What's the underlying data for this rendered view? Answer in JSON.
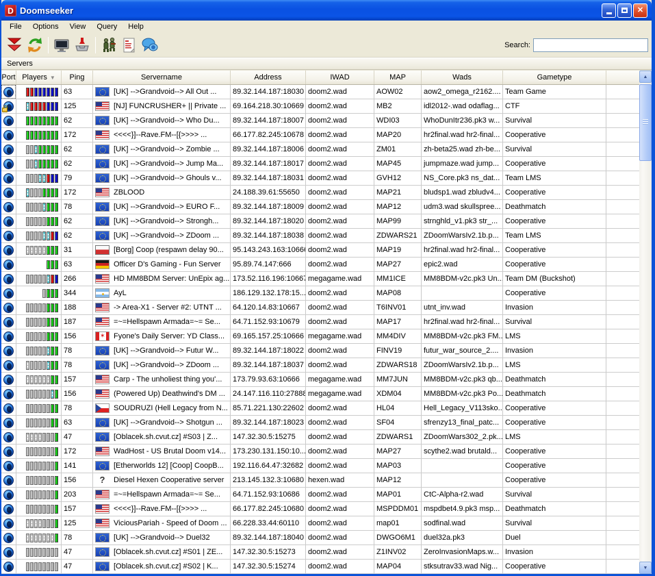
{
  "window": {
    "title": "Doomseeker"
  },
  "menu": [
    "File",
    "Options",
    "View",
    "Query",
    "Help"
  ],
  "toolbar": {
    "icons": [
      "get-new-server-list-icon",
      "refresh-servers-icon",
      "screenshot-monitor-icon",
      "wadseeker-download-icon",
      "join-game-icon",
      "server-log-icon",
      "irc-chat-icon"
    ],
    "search_label": "Search:",
    "search_value": ""
  },
  "panel": {
    "title": "Servers"
  },
  "table": {
    "columns": [
      "Port",
      "Players",
      "Ping",
      "Servername",
      "Address",
      "IWAD",
      "MAP",
      "Wads",
      "Gametype",
      ""
    ],
    "sort_column": "Players",
    "segment_legend": {
      "G": "player-green",
      "R": "team-red",
      "B": "team-blue",
      "E": "empty-slot",
      "X": "spectator-cyan",
      "P": "bot-pattern"
    },
    "rows": [
      {
        "locked": false,
        "players": "RRBBBBBB",
        "ping": "63",
        "flag": "eu",
        "name": "[UK] -->Grandvoid--> All Out ...",
        "address": "89.32.144.187:18030",
        "iwad": "doom2.wad",
        "map": "AOW02",
        "wads": "aow2_omega_r2162....",
        "gametype": "Team Game"
      },
      {
        "locked": true,
        "players": "XRRRRBBB",
        "ping": "125",
        "flag": "us",
        "name": "[NJ] FUNCRUSHER+ || Private ...",
        "address": "69.164.218.30:10669",
        "iwad": "doom2.wad",
        "map": "MB2",
        "wads": "idl2012-.wad odaflag...",
        "gametype": "CTF"
      },
      {
        "locked": false,
        "players": "GGGGGGGG",
        "ping": "62",
        "flag": "eu",
        "name": "[UK] -->Grandvoid--> Who Du...",
        "address": "89.32.144.187:18007",
        "iwad": "doom2.wad",
        "map": "WDI03",
        "wads": "WhoDunItr236.pk3 w...",
        "gametype": "Survival"
      },
      {
        "locked": false,
        "players": "GGGGGGGG",
        "ping": "172",
        "flag": "us",
        "name": "<<<<}]--Rave.FM--[{>>>> ...",
        "address": "66.177.82.245:10678",
        "iwad": "doom2.wad",
        "map": "MAP20",
        "wads": "hr2final.wad hr2-final...",
        "gametype": "Cooperative"
      },
      {
        "locked": false,
        "players": "EEXGGGGG",
        "ping": "62",
        "flag": "eu",
        "name": "[UK] -->Grandvoid--> Zombie ...",
        "address": "89.32.144.187:18006",
        "iwad": "doom2.wad",
        "map": "ZM01",
        "wads": "zh-beta25.wad zh-be...",
        "gametype": "Survival"
      },
      {
        "locked": false,
        "players": "EEXGGGGG",
        "ping": "62",
        "flag": "eu",
        "name": "[UK] -->Grandvoid--> Jump Ma...",
        "address": "89.32.144.187:18017",
        "iwad": "doom2.wad",
        "map": "MAP45",
        "wads": "jumpmaze.wad jump...",
        "gametype": "Cooperative"
      },
      {
        "locked": false,
        "players": "EEEXXRBB",
        "ping": "79",
        "flag": "eu",
        "name": "[UK] -->Grandvoid--> Ghouls v...",
        "address": "89.32.144.187:18031",
        "iwad": "doom2.wad",
        "map": "GVH12",
        "wads": "NS_Core.pk3 ns_dat...",
        "gametype": "Team LMS"
      },
      {
        "locked": false,
        "players": "XEEEGGGG",
        "ping": "172",
        "flag": "us",
        "name": "ZBLOOD",
        "address": "24.188.39.61:55650",
        "iwad": "doom2.wad",
        "map": "MAP21",
        "wads": "bludsp1.wad zbludv4...",
        "gametype": "Cooperative"
      },
      {
        "locked": false,
        "players": "EEEEXGGG",
        "ping": "78",
        "flag": "eu",
        "name": "[UK] -->Grandvoid--> EURO F...",
        "address": "89.32.144.187:18009",
        "iwad": "doom2.wad",
        "map": "MAP12",
        "wads": "udm3.wad skullspree...",
        "gametype": "Deathmatch"
      },
      {
        "locked": false,
        "players": "EEEEEGGG",
        "ping": "62",
        "flag": "eu",
        "name": "[UK] -->Grandvoid--> Strongh...",
        "address": "89.32.144.187:18020",
        "iwad": "doom2.wad",
        "map": "MAP99",
        "wads": "strnghld_v1.pk3 str_...",
        "gametype": "Cooperative"
      },
      {
        "locked": false,
        "players": "EEEEXXRB",
        "ping": "62",
        "flag": "eu",
        "name": "[UK] -->Grandvoid--> ZDoom ...",
        "address": "89.32.144.187:18038",
        "iwad": "doom2.wad",
        "map": "ZDWARS21",
        "wads": "ZDoomWarsIv2.1b.p...",
        "gametype": "Team LMS"
      },
      {
        "locked": false,
        "players": "PPPPPGGG",
        "ping": "31",
        "flag": "pl",
        "name": "[Borg] Coop (respawn delay 90...",
        "address": "95.143.243.163:10666",
        "iwad": "doom2.wad",
        "map": "MAP19",
        "wads": "hr2final.wad hr2-final...",
        "gametype": "Cooperative"
      },
      {
        "locked": false,
        "players": "GGG",
        "ping": "63",
        "flag": "de",
        "name": "Officer D's Gaming - Fun Server",
        "address": "95.89.74.147:666",
        "iwad": "doom2.wad",
        "map": "MAP27",
        "wads": "epic2.wad",
        "gametype": "Cooperative"
      },
      {
        "locked": false,
        "players": "EEEEEXRB",
        "ping": "266",
        "flag": "us",
        "name": "HD MM8BDM Server: UnEpix ag...",
        "address": "173.52.116.196:10667",
        "iwad": "megagame.wad",
        "map": "MM1ICE",
        "wads": "MM8BDM-v2c.pk3 Un...",
        "gametype": "Team DM (Buckshot)"
      },
      {
        "locked": false,
        "players": "EGGG",
        "ping": "344",
        "flag": "ar",
        "name": "AyL",
        "address": "186.129.132.178:15...",
        "iwad": "doom2.wad",
        "map": "MAP08",
        "wads": "",
        "gametype": "Cooperative"
      },
      {
        "locked": false,
        "players": "EEEEEGGG",
        "ping": "188",
        "flag": "us",
        "name": "-> Area-X1 - Server #2: UTNT ...",
        "address": "64.120.14.83:10667",
        "iwad": "doom2.wad",
        "map": "T6INV01",
        "wads": "utnt_inv.wad",
        "gametype": "Invasion"
      },
      {
        "locked": false,
        "players": "EEEEEGGG",
        "ping": "187",
        "flag": "us",
        "name": "=~=Hellspawn Armada=~= Se...",
        "address": "64.71.152.93:10679",
        "iwad": "doom2.wad",
        "map": "MAP17",
        "wads": "hr2final.wad hr2-final...",
        "gametype": "Survival"
      },
      {
        "locked": false,
        "players": "EEEEEGGG",
        "ping": "156",
        "flag": "ca",
        "name": "Fyone's Daily Server: YD Class...",
        "address": "69.165.157.25:10666",
        "iwad": "megagame.wad",
        "map": "MM4DIV",
        "wads": "MM8BDM-v2c.pk3 FM...",
        "gametype": "LMS"
      },
      {
        "locked": false,
        "players": "EEEEEXGG",
        "ping": "78",
        "flag": "eu",
        "name": "[UK] -->Grandvoid--> Futur W...",
        "address": "89.32.144.187:18022",
        "iwad": "doom2.wad",
        "map": "FINV19",
        "wads": "futur_war_source_2....",
        "gametype": "Invasion"
      },
      {
        "locked": false,
        "players": "PEEEEXGG",
        "ping": "78",
        "flag": "eu",
        "name": "[UK] -->Grandvoid--> ZDoom ...",
        "address": "89.32.144.187:18037",
        "iwad": "doom2.wad",
        "map": "ZDWARS18",
        "wads": "ZDoomWarsIv2.1b.p...",
        "gametype": "LMS"
      },
      {
        "locked": false,
        "players": "PPPPPPGG",
        "ping": "157",
        "flag": "us",
        "name": "Carp - The unholiest thing you'...",
        "address": "173.79.93.63:10666",
        "iwad": "megagame.wad",
        "map": "MM7JUN",
        "wads": "MM8BDM-v2c.pk3 qb...",
        "gametype": "Deathmatch"
      },
      {
        "locked": false,
        "players": "EEEEEEXG",
        "ping": "156",
        "flag": "us",
        "name": "(Powered Up) Deathwind's DM ...",
        "address": "24.147.116.110:27888",
        "iwad": "megagame.wad",
        "map": "XDM04",
        "wads": "MM8BDM-v2c.pk3 Po...",
        "gametype": "Deathmatch"
      },
      {
        "locked": false,
        "players": "EEEEEEGG",
        "ping": "78",
        "flag": "cz",
        "name": "SOUDRUZI (Hell Legacy from N...",
        "address": "85.71.221.130:22602",
        "iwad": "doom2.wad",
        "map": "HL04",
        "wads": "Hell_Legacy_V113sko...",
        "gametype": "Cooperative"
      },
      {
        "locked": false,
        "players": "EEEEEEGG",
        "ping": "63",
        "flag": "eu",
        "name": "[UK] -->Grandvoid--> Shotgun ...",
        "address": "89.32.144.187:18023",
        "iwad": "doom2.wad",
        "map": "SF04",
        "wads": "sfrenzy13_final_patc...",
        "gametype": "Cooperative"
      },
      {
        "locked": false,
        "players": "PPPPEEEG",
        "ping": "47",
        "flag": "eu",
        "name": "[Oblacek.sh.cvut.cz] #S03 | Z...",
        "address": "147.32.30.5:15275",
        "iwad": "doom2.wad",
        "map": "ZDWARS1",
        "wads": "ZDoomWars302_2.pk...",
        "gametype": "LMS"
      },
      {
        "locked": false,
        "players": "EEEEEEEG",
        "ping": "172",
        "flag": "us",
        "name": "WadHost - US Brutal Doom v14...",
        "address": "173.230.131.150:10...",
        "iwad": "doom2.wad",
        "map": "MAP27",
        "wads": "scythe2.wad brutald...",
        "gametype": "Cooperative"
      },
      {
        "locked": false,
        "players": "EEEEEEEG",
        "ping": "141",
        "flag": "eu",
        "name": "[Etherworlds 12] [Coop] CoopB...",
        "address": "192.116.64.47:32682",
        "iwad": "doom2.wad",
        "map": "MAP03",
        "wads": "",
        "gametype": "Cooperative"
      },
      {
        "locked": false,
        "players": "EEEEEEEG",
        "ping": "156",
        "flag": "unknown",
        "name": "Diesel Hexen Cooperative server",
        "address": "213.145.132.3:10680",
        "iwad": "hexen.wad",
        "map": "MAP12",
        "wads": "",
        "gametype": "Cooperative"
      },
      {
        "locked": false,
        "players": "EEEEEEEG",
        "ping": "203",
        "flag": "us",
        "name": "=~=Hellspawn Armada=~= Se...",
        "address": "64.71.152.93:10686",
        "iwad": "doom2.wad",
        "map": "MAP01",
        "wads": "CtC-Alpha-r2.wad",
        "gametype": "Survival"
      },
      {
        "locked": false,
        "players": "EEEEEEEG",
        "ping": "157",
        "flag": "us",
        "name": "<<<<}]--Rave.FM--[{>>>> ...",
        "address": "66.177.82.245:10680",
        "iwad": "doom2.wad",
        "map": "MSPDDM01",
        "wads": "mspdbet4.9.pk3 msp...",
        "gametype": "Deathmatch"
      },
      {
        "locked": false,
        "players": "PPPPEEEG",
        "ping": "125",
        "flag": "us",
        "name": "ViciousPariah - Speed of Doom ...",
        "address": "66.228.33.44:60110",
        "iwad": "doom2.wad",
        "map": "map01",
        "wads": "sodfinal.wad",
        "gametype": "Survival"
      },
      {
        "locked": false,
        "players": "PPPPPPPG",
        "ping": "78",
        "flag": "eu",
        "name": "[UK] -->Grandvoid--> Duel32",
        "address": "89.32.144.187:18040",
        "iwad": "doom2.wad",
        "map": "DWGO6M1",
        "wads": "duel32a.pk3",
        "gametype": "Duel"
      },
      {
        "locked": false,
        "players": "EEEEEEEE",
        "ping": "47",
        "flag": "eu",
        "name": "[Oblacek.sh.cvut.cz] #S01 | ZE...",
        "address": "147.32.30.5:15273",
        "iwad": "doom2.wad",
        "map": "Z1INV02",
        "wads": "ZeroInvasionMaps.w...",
        "gametype": "Invasion"
      },
      {
        "locked": false,
        "players": "EEEEEEEE",
        "ping": "47",
        "flag": "eu",
        "name": "[Oblacek.sh.cvut.cz] #S02 | K...",
        "address": "147.32.30.5:15274",
        "iwad": "doom2.wad",
        "map": "MAP04",
        "wads": "stksutrav33.wad Nig...",
        "gametype": "Cooperative"
      }
    ]
  }
}
